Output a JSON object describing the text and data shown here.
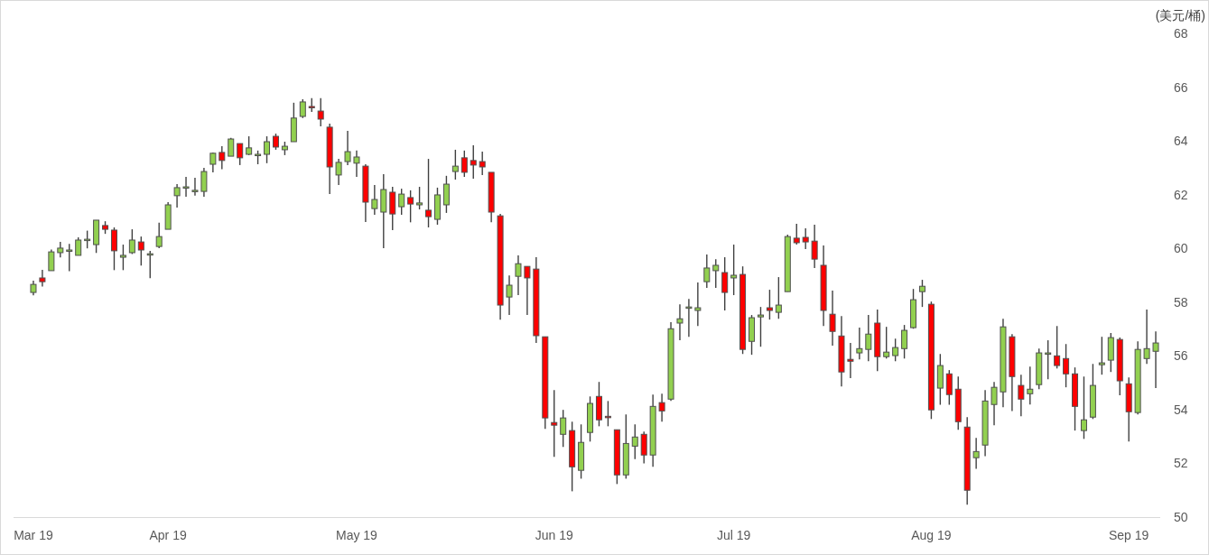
{
  "chart_data": {
    "type": "candlestick",
    "ylabel": "(美元/桶)",
    "categories": [
      "Mar 19",
      null,
      null,
      null,
      null,
      null,
      null,
      null,
      null,
      null,
      null,
      null,
      null,
      null,
      null,
      "Apr 19",
      null,
      null,
      null,
      null,
      null,
      null,
      null,
      null,
      null,
      null,
      null,
      null,
      null,
      null,
      null,
      null,
      null,
      null,
      null,
      null,
      "May 19",
      null,
      null,
      null,
      null,
      null,
      null,
      null,
      null,
      null,
      null,
      null,
      null,
      null,
      null,
      null,
      null,
      null,
      null,
      null,
      null,
      null,
      "Jun 19",
      null,
      null,
      null,
      null,
      null,
      null,
      null,
      null,
      null,
      null,
      null,
      null,
      null,
      null,
      null,
      null,
      null,
      null,
      null,
      "Jul 19",
      null,
      null,
      null,
      null,
      null,
      null,
      null,
      null,
      null,
      null,
      null,
      null,
      null,
      null,
      null,
      null,
      null,
      null,
      null,
      null,
      null,
      "Aug 19",
      null,
      null,
      null,
      null,
      null,
      null,
      null,
      null,
      null,
      null,
      null,
      null,
      null,
      null,
      null,
      null,
      null,
      null,
      null,
      null,
      null,
      "Sep 19",
      null,
      null,
      null
    ],
    "ohlc": [
      [
        58.36,
        58.8,
        58.25,
        58.66
      ],
      [
        58.9,
        59.2,
        58.58,
        58.76
      ],
      [
        59.17,
        59.96,
        59.17,
        59.87
      ],
      [
        59.84,
        60.24,
        59.66,
        60.01
      ],
      [
        59.91,
        60.17,
        59.15,
        59.94
      ],
      [
        59.74,
        60.41,
        59.74,
        60.31
      ],
      [
        60.31,
        60.66,
        60.0,
        60.34
      ],
      [
        60.14,
        61.05,
        59.83,
        61.05
      ],
      [
        60.85,
        61.01,
        60.54,
        60.71
      ],
      [
        60.68,
        60.78,
        59.19,
        59.91
      ],
      [
        59.67,
        60.14,
        59.19,
        59.74
      ],
      [
        59.84,
        60.71,
        59.79,
        60.31
      ],
      [
        60.24,
        60.44,
        59.36,
        59.94
      ],
      [
        59.77,
        59.91,
        58.89,
        59.8
      ],
      [
        60.07,
        60.96,
        60.01,
        60.44
      ],
      [
        60.71,
        61.72,
        60.71,
        61.62
      ],
      [
        61.96,
        62.39,
        61.52,
        62.26
      ],
      [
        62.26,
        62.66,
        61.92,
        62.29
      ],
      [
        62.12,
        62.63,
        61.96,
        62.16
      ],
      [
        62.12,
        63.0,
        61.92,
        62.86
      ],
      [
        63.13,
        63.57,
        62.83,
        63.54
      ],
      [
        63.57,
        63.8,
        62.95,
        63.27
      ],
      [
        63.43,
        64.11,
        63.43,
        64.07
      ],
      [
        63.9,
        63.9,
        63.1,
        63.37
      ],
      [
        63.5,
        64.17,
        63.47,
        63.74
      ],
      [
        63.47,
        63.64,
        63.13,
        63.5
      ],
      [
        63.5,
        64.17,
        63.17,
        63.97
      ],
      [
        64.17,
        64.27,
        63.67,
        63.77
      ],
      [
        63.67,
        63.97,
        63.47,
        63.8
      ],
      [
        63.97,
        65.42,
        63.97,
        64.85
      ],
      [
        64.91,
        65.55,
        64.85,
        65.45
      ],
      [
        65.28,
        65.59,
        65.08,
        65.27
      ],
      [
        65.11,
        65.59,
        64.54,
        64.81
      ],
      [
        64.51,
        64.64,
        62.02,
        63.03
      ],
      [
        62.73,
        63.33,
        62.36,
        63.2
      ],
      [
        63.23,
        64.37,
        63.1,
        63.6
      ],
      [
        63.17,
        63.64,
        62.66,
        63.4
      ],
      [
        63.06,
        63.13,
        60.98,
        61.72
      ],
      [
        61.48,
        62.36,
        61.25,
        61.82
      ],
      [
        61.35,
        62.76,
        60.01,
        62.19
      ],
      [
        62.09,
        62.29,
        60.68,
        61.28
      ],
      [
        61.55,
        62.22,
        61.25,
        62.02
      ],
      [
        61.89,
        62.16,
        60.97,
        61.65
      ],
      [
        61.62,
        62.29,
        61.45,
        61.69
      ],
      [
        61.42,
        63.33,
        60.78,
        61.18
      ],
      [
        61.08,
        62.26,
        60.88,
        61.99
      ],
      [
        61.62,
        62.7,
        61.32,
        62.39
      ],
      [
        62.86,
        63.67,
        62.56,
        63.06
      ],
      [
        63.37,
        63.64,
        62.66,
        62.83
      ],
      [
        63.27,
        63.84,
        62.59,
        63.1
      ],
      [
        63.23,
        63.6,
        62.73,
        63.03
      ],
      [
        62.83,
        62.83,
        60.97,
        61.35
      ],
      [
        61.21,
        61.28,
        57.35,
        57.89
      ],
      [
        58.19,
        58.99,
        57.52,
        58.63
      ],
      [
        58.96,
        59.74,
        58.26,
        59.43
      ],
      [
        59.33,
        59.33,
        57.52,
        58.9
      ],
      [
        59.23,
        59.67,
        56.48,
        56.75
      ],
      [
        56.71,
        56.71,
        53.28,
        53.69
      ],
      [
        53.52,
        54.73,
        52.24,
        53.42
      ],
      [
        53.08,
        53.99,
        52.61,
        53.69
      ],
      [
        53.22,
        53.55,
        50.96,
        51.87
      ],
      [
        51.74,
        53.45,
        51.43,
        52.78
      ],
      [
        53.15,
        54.49,
        52.81,
        54.23
      ],
      [
        54.49,
        55.03,
        53.38,
        53.62
      ],
      [
        53.75,
        54.32,
        53.38,
        53.72
      ],
      [
        53.25,
        53.25,
        51.23,
        51.57
      ],
      [
        51.57,
        53.82,
        51.43,
        52.74
      ],
      [
        52.64,
        53.45,
        52.16,
        52.98
      ],
      [
        53.08,
        53.18,
        52.0,
        52.31
      ],
      [
        52.31,
        54.56,
        51.87,
        54.12
      ],
      [
        54.26,
        54.59,
        53.55,
        53.95
      ],
      [
        54.39,
        57.25,
        54.32,
        57.01
      ],
      [
        57.22,
        57.92,
        56.58,
        57.38
      ],
      [
        57.8,
        58.12,
        56.71,
        57.82
      ],
      [
        57.69,
        58.73,
        57.11,
        57.79
      ],
      [
        58.76,
        59.77,
        58.53,
        59.27
      ],
      [
        59.17,
        59.6,
        58.53,
        59.37
      ],
      [
        59.1,
        59.67,
        57.69,
        58.36
      ],
      [
        58.9,
        60.14,
        58.26,
        59.0
      ],
      [
        59.03,
        59.33,
        56.07,
        56.24
      ],
      [
        56.54,
        57.52,
        56.04,
        57.42
      ],
      [
        57.45,
        57.82,
        56.34,
        57.52
      ],
      [
        57.79,
        58.46,
        57.35,
        57.69
      ],
      [
        57.62,
        58.93,
        57.38,
        57.89
      ],
      [
        58.39,
        60.51,
        58.39,
        60.44
      ],
      [
        60.38,
        60.91,
        60.14,
        60.21
      ],
      [
        60.41,
        60.75,
        59.97,
        60.24
      ],
      [
        60.27,
        60.88,
        59.27,
        59.6
      ],
      [
        59.37,
        60.11,
        57.11,
        57.69
      ],
      [
        57.55,
        58.43,
        56.38,
        56.91
      ],
      [
        56.74,
        57.48,
        54.86,
        55.4
      ],
      [
        55.87,
        56.48,
        55.17,
        55.8
      ],
      [
        56.11,
        57.05,
        55.87,
        56.27
      ],
      [
        56.24,
        57.52,
        55.8,
        56.81
      ],
      [
        57.22,
        57.72,
        55.43,
        55.97
      ],
      [
        55.97,
        57.08,
        55.9,
        56.14
      ],
      [
        56.01,
        56.64,
        55.8,
        56.31
      ],
      [
        56.27,
        57.15,
        55.9,
        56.95
      ],
      [
        57.05,
        58.49,
        57.01,
        58.09
      ],
      [
        58.39,
        58.83,
        57.82,
        58.59
      ],
      [
        57.92,
        58.02,
        53.65,
        53.99
      ],
      [
        54.8,
        56.07,
        54.18,
        55.64
      ],
      [
        55.33,
        55.47,
        54.18,
        54.56
      ],
      [
        54.76,
        55.23,
        53.25,
        53.55
      ],
      [
        53.35,
        53.72,
        50.46,
        51.0
      ],
      [
        52.21,
        52.95,
        51.8,
        52.44
      ],
      [
        52.68,
        54.73,
        52.27,
        54.32
      ],
      [
        54.19,
        55.03,
        53.42,
        54.83
      ],
      [
        54.66,
        57.38,
        54.09,
        57.08
      ],
      [
        56.71,
        56.81,
        53.95,
        55.23
      ],
      [
        54.9,
        55.3,
        53.75,
        54.39
      ],
      [
        54.59,
        55.6,
        54.19,
        54.76
      ],
      [
        54.93,
        56.27,
        54.76,
        56.11
      ],
      [
        56.07,
        56.58,
        55.13,
        56.11
      ],
      [
        56.0,
        57.11,
        55.53,
        55.64
      ],
      [
        55.9,
        56.44,
        54.83,
        55.33
      ],
      [
        55.33,
        55.57,
        53.22,
        54.12
      ],
      [
        53.22,
        55.23,
        52.91,
        53.62
      ],
      [
        53.72,
        55.7,
        53.65,
        54.9
      ],
      [
        55.67,
        56.71,
        55.3,
        55.74
      ],
      [
        55.84,
        56.85,
        55.4,
        56.68
      ],
      [
        56.61,
        56.68,
        54.53,
        55.07
      ],
      [
        54.96,
        55.2,
        52.81,
        53.92
      ],
      [
        53.89,
        56.54,
        53.82,
        56.24
      ],
      [
        55.9,
        57.72,
        55.7,
        56.27
      ],
      [
        56.17,
        56.91,
        54.8,
        56.48
      ]
    ],
    "ylim": [
      50,
      68
    ],
    "yticks": [
      50,
      52,
      54,
      56,
      58,
      60,
      62,
      64,
      66,
      68
    ]
  }
}
